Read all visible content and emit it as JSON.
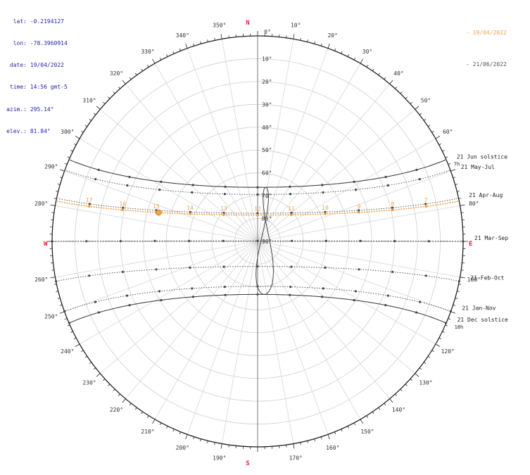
{
  "info": {
    "rows": [
      {
        "label": "lat:",
        "value": "-0.2194127"
      },
      {
        "label": "lon:",
        "value": "-78.3960914"
      },
      {
        "label": "date:",
        "value": "19/04/2022"
      },
      {
        "label": "time:",
        "value": "14:56 gmt-5"
      },
      {
        "label": "azim.:",
        "value": "295.14°"
      },
      {
        "label": "elev.:",
        "value": "81.84°"
      }
    ],
    "color": "#1f1fa8"
  },
  "legend": [
    {
      "dash": "-",
      "label": "19/04/2022",
      "color": "#f0a24a"
    },
    {
      "dash": "-",
      "label": "21/06/2022",
      "color": "#555555"
    }
  ],
  "chart_data": {
    "type": "polar-sunpath",
    "cardinals": {
      "north": "N",
      "south": "S",
      "east": "E",
      "west": "W",
      "color": "#e0203a"
    },
    "azimuth_ticks": [
      {
        "az": 0,
        "label": "0°"
      },
      {
        "az": 10,
        "label": "10°"
      },
      {
        "az": 20,
        "label": "20°"
      },
      {
        "az": 30,
        "label": "30°"
      },
      {
        "az": 40,
        "label": "40°"
      },
      {
        "az": 50,
        "label": "50°"
      },
      {
        "az": 60,
        "label": "60°"
      },
      {
        "az": 80,
        "label": "80°"
      },
      {
        "az": 100,
        "label": "100°"
      },
      {
        "az": 120,
        "label": "120°"
      },
      {
        "az": 130,
        "label": "130°"
      },
      {
        "az": 140,
        "label": "140°"
      },
      {
        "az": 150,
        "label": "150°"
      },
      {
        "az": 160,
        "label": "160°"
      },
      {
        "az": 170,
        "label": "170°"
      },
      {
        "az": 190,
        "label": "190°"
      },
      {
        "az": 200,
        "label": "200°"
      },
      {
        "az": 210,
        "label": "210°"
      },
      {
        "az": 220,
        "label": "220°"
      },
      {
        "az": 230,
        "label": "230°"
      },
      {
        "az": 240,
        "label": "240°"
      },
      {
        "az": 250,
        "label": "250°"
      },
      {
        "az": 260,
        "label": "260°"
      },
      {
        "az": 280,
        "label": "280°"
      },
      {
        "az": 290,
        "label": "290°"
      },
      {
        "az": 300,
        "label": "300°"
      },
      {
        "az": 310,
        "label": "310°"
      },
      {
        "az": 320,
        "label": "320°"
      },
      {
        "az": 330,
        "label": "330°"
      },
      {
        "az": 340,
        "label": "340°"
      },
      {
        "az": 350,
        "label": "350°"
      }
    ],
    "elevation_ticks": [
      {
        "elev": 10,
        "label": "10°"
      },
      {
        "elev": 20,
        "label": "20°"
      },
      {
        "elev": 30,
        "label": "30°"
      },
      {
        "elev": 40,
        "label": "40°"
      },
      {
        "elev": 50,
        "label": "50°"
      },
      {
        "elev": 60,
        "label": "60°"
      },
      {
        "elev": 70,
        "label": "70°"
      },
      {
        "elev": 80,
        "label": "80°"
      },
      {
        "elev": 90,
        "label": "90°"
      }
    ],
    "declination_lines": [
      {
        "label": "21 Jun  solstice",
        "dec": 23.44,
        "style": "solid"
      },
      {
        "label": "21 May-Jul",
        "dec": 20.3,
        "style": "dotted"
      },
      {
        "label": "21 Apr-Aug",
        "dec": 12.1,
        "style": "dotted"
      },
      {
        "label": "21 Mar-Sep",
        "dec": 0,
        "style": "dotted"
      },
      {
        "label": "21 Feb-Oct",
        "dec": -11.2,
        "style": "dotted"
      },
      {
        "label": "21 Jan-Nov",
        "dec": -19.9,
        "style": "dotted"
      },
      {
        "label": "21 Dec  solstice",
        "dec": -23.44,
        "style": "solid"
      }
    ],
    "right_hour_labels": [
      "7h",
      "18h"
    ],
    "right_hour_label_decs": [
      23.44,
      -23.44
    ],
    "date_path": {
      "date": "19/04/2022",
      "dec": 11.3,
      "color": "#f0a24a",
      "hour_labels": [
        "6",
        "7",
        "8",
        "9",
        "10",
        "11",
        "12",
        "13",
        "14",
        "15",
        "16",
        "17",
        "18"
      ],
      "current_hour": 14.93
    },
    "analemma": {
      "hour": 12,
      "eq_time_amplitude_min": 16
    },
    "site": {
      "lat": -0.2194127,
      "lon": -78.3960914,
      "timezone": -5
    },
    "grid": true,
    "legend_position": "top-right"
  }
}
